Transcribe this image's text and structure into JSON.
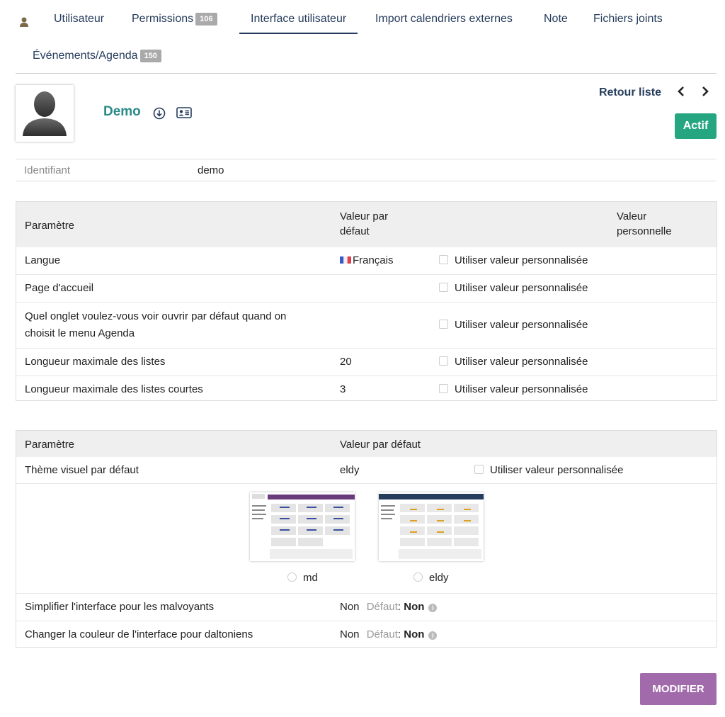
{
  "tabs": {
    "utilisateur": "Utilisateur",
    "permissions": "Permissions",
    "permissions_badge": "106",
    "interface": "Interface utilisateur",
    "import": "Import calendriers externes",
    "note": "Note",
    "fichiers": "Fichiers joints",
    "evenements": "Événements/Agenda",
    "evenements_badge": "150"
  },
  "header": {
    "name": "Demo",
    "retour": "Retour liste",
    "prev": "‹",
    "next": "›",
    "status": "Actif",
    "status_color": "#25a580"
  },
  "identity": {
    "label": "Identifiant",
    "value": "demo"
  },
  "table1": {
    "col_param": "Paramètre",
    "col_default_1": "Valeur par",
    "col_default_2": "défaut",
    "col_personal_1": "Valeur",
    "col_personal_2": "personnelle",
    "custom_label": "Utiliser valeur personnalisée",
    "rows": [
      {
        "label": "Langue",
        "default": "Français"
      },
      {
        "label": "Page d'accueil",
        "default": ""
      },
      {
        "label_1": "Quel onglet voulez-vous voir ouvrir par défaut quand on",
        "label_2": "choisit le menu Agenda",
        "default": ""
      },
      {
        "label": "Longueur maximale des listes",
        "default": "20"
      },
      {
        "label": "Longueur maximale des listes courtes",
        "default": "3"
      }
    ]
  },
  "table2": {
    "col_param": "Paramètre",
    "col_default": "Valeur par défaut",
    "theme_label": "Thème visuel par défaut",
    "theme_default": "eldy",
    "custom_label": "Utiliser valeur personnalisée",
    "themes": [
      "md",
      "eldy"
    ],
    "rows": [
      {
        "label": "Simplifier l'interface pour les malvoyants",
        "value": "Non",
        "default_label": "Défaut",
        "default_value": "Non"
      },
      {
        "label": "Changer la couleur de l'interface pour daltoniens",
        "value": "Non",
        "default_label": "Défaut",
        "default_value": "Non"
      }
    ]
  },
  "actions": {
    "modify": "MODIFIER",
    "modify_color": "#a06aab"
  }
}
